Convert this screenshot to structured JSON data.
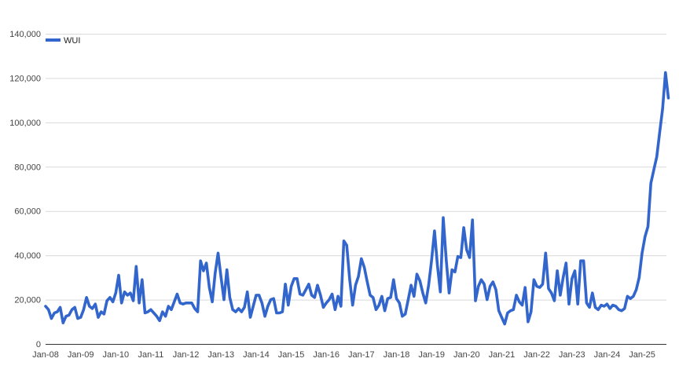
{
  "chart_data": {
    "type": "line",
    "title": "",
    "xlabel": "",
    "ylabel": "",
    "ylim": [
      0,
      140000
    ],
    "yticks": [
      0,
      20000,
      40000,
      60000,
      80000,
      100000,
      120000,
      140000
    ],
    "ytick_labels": [
      "0",
      "20,000",
      "40,000",
      "60,000",
      "80,000",
      "100,000",
      "120,000",
      "140,000"
    ],
    "xtick_labels": [
      "Jan-08",
      "Jan-09",
      "Jan-10",
      "Jan-11",
      "Jan-12",
      "Jan-13",
      "Jan-14",
      "Jan-15",
      "Jan-16",
      "Jan-17",
      "Jan-18",
      "Jan-19",
      "Jan-20",
      "Jan-21",
      "Jan-22",
      "Jan-23",
      "Jan-24",
      "Jan-25"
    ],
    "grid": true,
    "legend_position": "top-left",
    "frequency": "monthly",
    "start": "Jan-08",
    "series": [
      {
        "name": "WUI",
        "color": "#3366cc",
        "values": [
          17000,
          15500,
          11500,
          14000,
          14500,
          16500,
          9500,
          12500,
          13000,
          15500,
          16500,
          11500,
          12000,
          15500,
          21000,
          17000,
          16000,
          18000,
          12000,
          14500,
          13500,
          19500,
          21000,
          19000,
          23000,
          31000,
          18500,
          23500,
          22000,
          23000,
          19500,
          35000,
          18500,
          29000,
          14000,
          14500,
          15500,
          14000,
          12500,
          10500,
          14500,
          12500,
          17000,
          15500,
          19000,
          22500,
          18500,
          18000,
          18500,
          18500,
          18500,
          16000,
          14500,
          37500,
          33000,
          36500,
          25500,
          19000,
          32000,
          41000,
          30000,
          20000,
          33500,
          21000,
          15500,
          14500,
          16000,
          14500,
          16500,
          23500,
          12000,
          17000,
          22000,
          22000,
          18500,
          12500,
          17000,
          20000,
          20500,
          14000,
          14000,
          14500,
          27000,
          17500,
          26000,
          29500,
          29500,
          22500,
          22000,
          24500,
          27000,
          22000,
          21000,
          26500,
          22000,
          16500,
          18500,
          20000,
          22500,
          15500,
          21500,
          17000,
          46500,
          44500,
          29000,
          17500,
          26500,
          30500,
          38500,
          34500,
          28000,
          22000,
          21000,
          15500,
          17500,
          21500,
          15000,
          20500,
          21000,
          29000,
          20500,
          18500,
          12500,
          13500,
          20000,
          26500,
          21500,
          31500,
          28500,
          23000,
          18500,
          26500,
          37500,
          51000,
          35500,
          23500,
          57000,
          38000,
          23000,
          33500,
          32500,
          39500,
          39000,
          52500,
          42500,
          39000,
          56000,
          19500,
          26000,
          29000,
          27000,
          20000,
          26000,
          28000,
          24500,
          15000,
          12000,
          9000,
          14000,
          15000,
          15500,
          22000,
          19000,
          17500,
          25500,
          10000,
          14500,
          29000,
          26000,
          25500,
          27000,
          41000,
          25000,
          23000,
          19500,
          33000,
          22000,
          30000,
          36500,
          18000,
          29500,
          33000,
          18000,
          37500,
          37500,
          18500,
          16500,
          23000,
          16500,
          15500,
          17500,
          17000,
          18000,
          16000,
          17500,
          17000,
          15500,
          15000,
          16000,
          21500,
          20500,
          21500,
          24500,
          30000,
          41000,
          48500,
          53000,
          72500,
          78500,
          84500,
          95500,
          106000,
          122500,
          111000
        ]
      }
    ]
  },
  "legend": {
    "items": [
      {
        "label": "WUI",
        "color": "#3366cc"
      }
    ]
  }
}
